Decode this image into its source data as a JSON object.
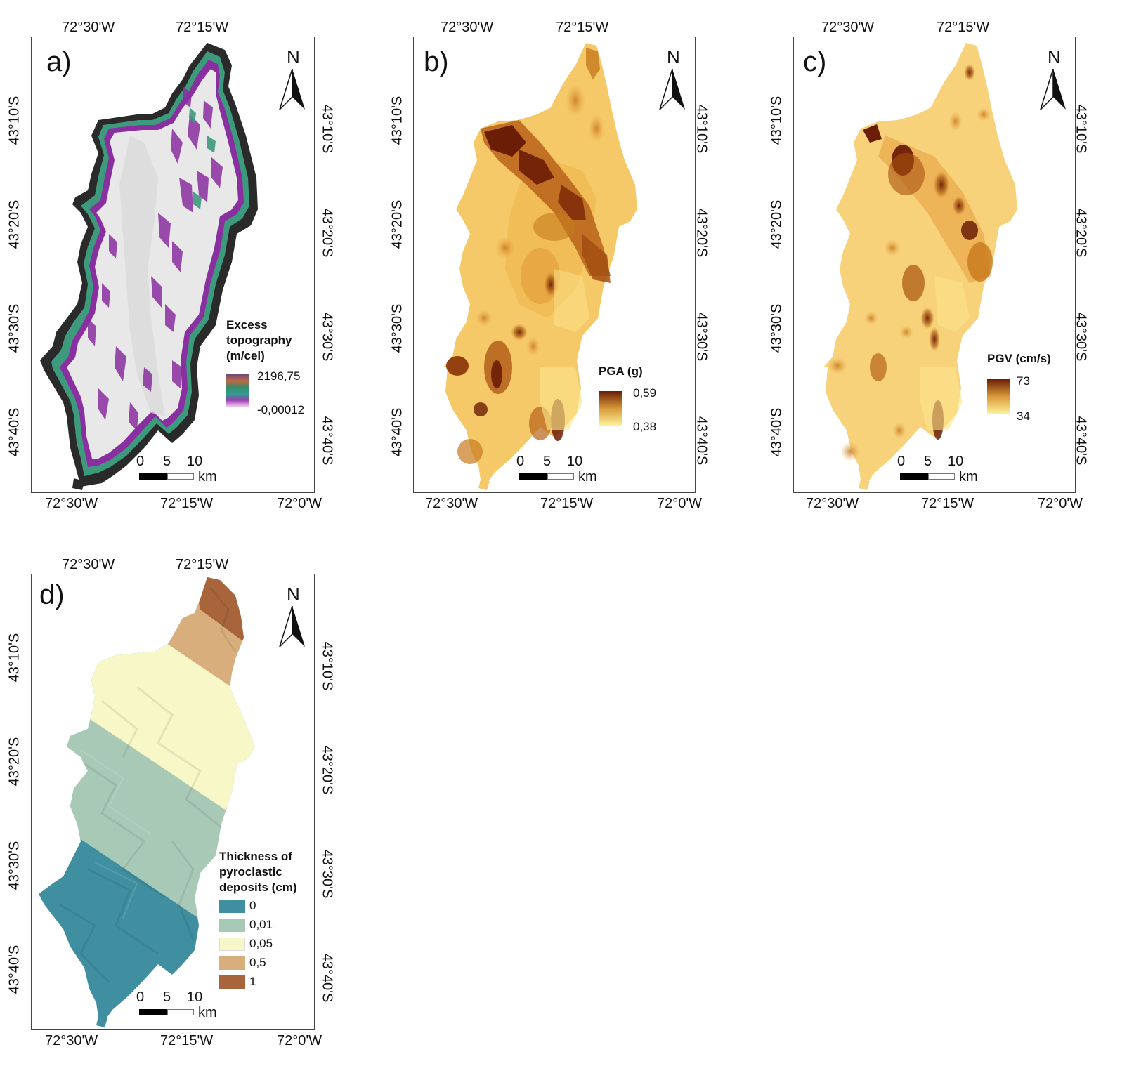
{
  "coordinate_labels": {
    "lon_top": [
      "72°30'W",
      "72°15'W"
    ],
    "lon_bottom": [
      "72°30'W",
      "72°15'W",
      "72°0'W"
    ],
    "lat": [
      "43°10'S",
      "43°20'S",
      "43°30'S",
      "43°40'S"
    ]
  },
  "north_label": "N",
  "scale_bar": {
    "ticks": [
      "0",
      "5",
      "10"
    ],
    "unit": "km"
  },
  "panels": {
    "a": {
      "label": "a)",
      "legend_title": [
        "Excess",
        "topography",
        "(m/cel)"
      ],
      "legend_max": "2196,75",
      "legend_min": "-0,00012",
      "colors": [
        "#7a1f86",
        "#c77bd1",
        "#e9e9e9",
        "#2b2b2b"
      ]
    },
    "b": {
      "label": "b)",
      "legend_title": [
        "PGA (g)"
      ],
      "legend_max": "0,59",
      "legend_min": "0,38",
      "colors": [
        "#fff5a0",
        "#f3c25a",
        "#c7791c",
        "#6b1d06"
      ]
    },
    "c": {
      "label": "c)",
      "legend_title": [
        "PGV (cm/s)"
      ],
      "legend_max": "73",
      "legend_min": "34",
      "colors": [
        "#fff5a0",
        "#f3c25a",
        "#c7791c",
        "#6b1d06"
      ]
    },
    "d": {
      "label": "d)",
      "legend_title": [
        "Thickness of",
        "pyroclastic",
        "deposits (cm)"
      ],
      "classes": [
        {
          "value": "0",
          "color": "#3f8fa0"
        },
        {
          "value": "0,01",
          "color": "#a9c9b7"
        },
        {
          "value": "0,05",
          "color": "#f8f7c8"
        },
        {
          "value": "0,5",
          "color": "#d8af7c"
        },
        {
          "value": "1",
          "color": "#a8643b"
        }
      ]
    }
  }
}
